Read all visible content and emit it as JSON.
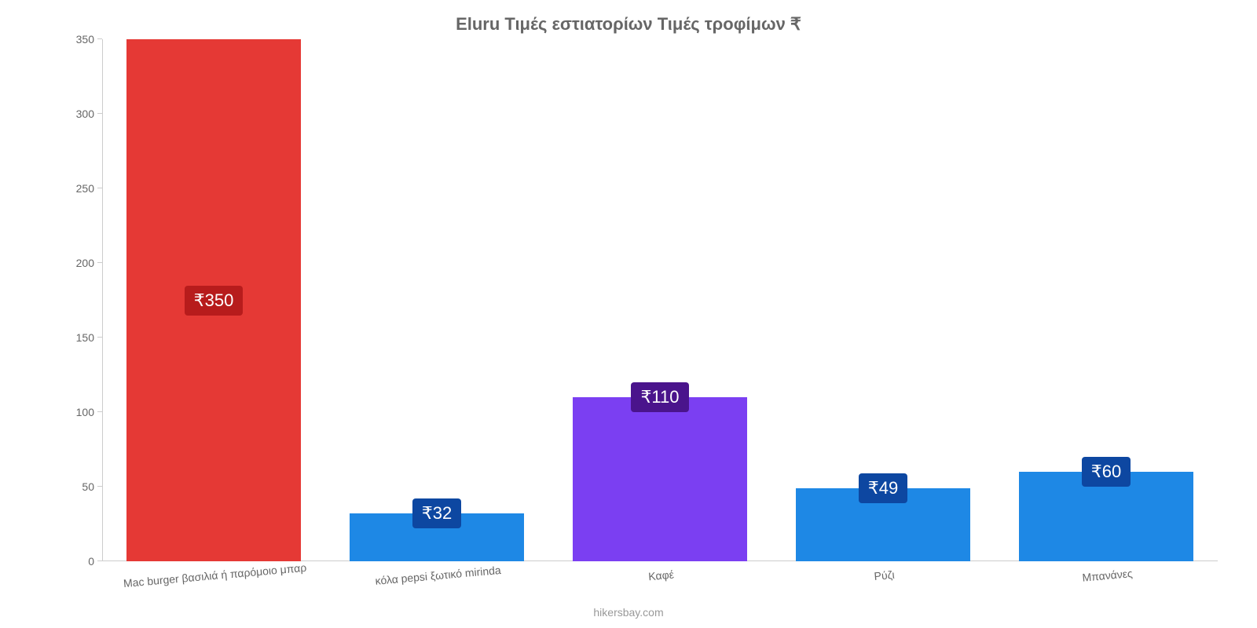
{
  "chart": {
    "type": "bar",
    "title": "Eluru Τιμές εστιατορίων Τιμές τροφίμων ₹",
    "title_fontsize": 22,
    "title_color": "#666666",
    "background_color": "#ffffff",
    "axis_color": "#cccccc",
    "label_color": "#666666",
    "credit_color": "#999999",
    "label_fontsize": 14,
    "ylim": [
      0,
      350
    ],
    "ytick_step": 50,
    "yticks": [
      0,
      50,
      100,
      150,
      200,
      250,
      300,
      350
    ],
    "bar_width_pct": 78,
    "categories": [
      "Mac burger βασιλιά ή παρόμοιο μπαρ",
      "κόλα pepsi ξωτικό mirinda",
      "Καφέ",
      "Ρύζι",
      "Μπανάνες"
    ],
    "values": [
      350,
      32,
      110,
      49,
      60
    ],
    "value_labels": [
      "₹350",
      "₹32",
      "₹110",
      "₹49",
      "₹60"
    ],
    "bar_colors": [
      "#e53935",
      "#1e88e5",
      "#7b3ff2",
      "#1e88e5",
      "#1e88e5"
    ],
    "badge_colors": [
      "#b71c1c",
      "#0d47a1",
      "#4a148c",
      "#0d47a1",
      "#0d47a1"
    ],
    "badge_fontsize": 22,
    "credit": "hikersbay.com",
    "credit_fontsize": 14
  }
}
